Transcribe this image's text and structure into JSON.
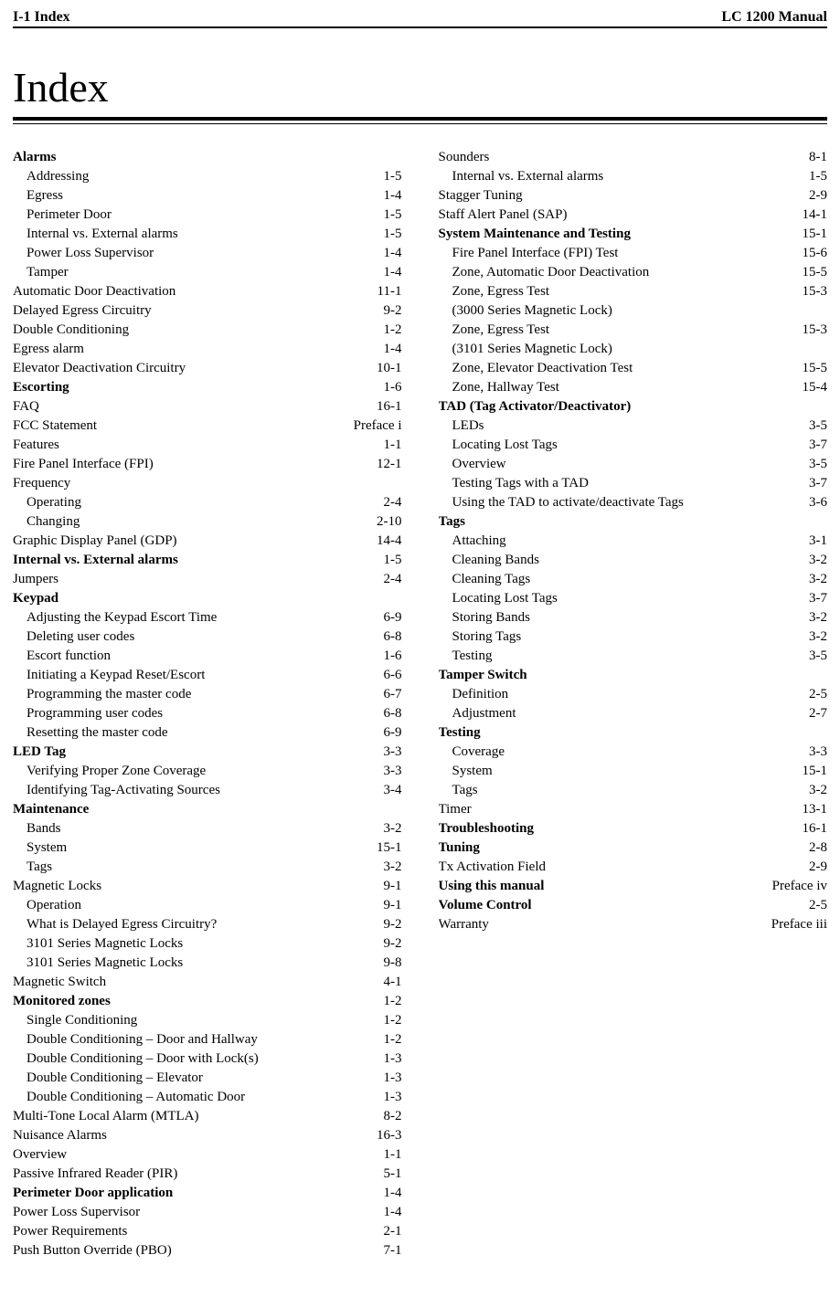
{
  "header": {
    "left": "I-1 Index",
    "right": "LC 1200 Manual"
  },
  "title": "Index",
  "left_col": [
    {
      "label": "Alarms",
      "page": "",
      "bold": true,
      "indent": 0
    },
    {
      "label": "Addressing",
      "page": "1-5",
      "indent": 1
    },
    {
      "label": "Egress",
      "page": "1-4",
      "indent": 1
    },
    {
      "label": "Perimeter Door",
      "page": "1-5",
      "indent": 1
    },
    {
      "label": "Internal vs. External alarms",
      "page": "1-5",
      "indent": 1
    },
    {
      "label": "Power Loss Supervisor",
      "page": "1-4",
      "indent": 1
    },
    {
      "label": "Tamper",
      "page": "1-4",
      "indent": 1
    },
    {
      "label": "Automatic Door Deactivation",
      "page": "11-1",
      "indent": 0
    },
    {
      "label": "Delayed Egress Circuitry",
      "page": "9-2",
      "indent": 0
    },
    {
      "label": "Double Conditioning",
      "page": "1-2",
      "indent": 0
    },
    {
      "label": "Egress alarm",
      "page": "1-4",
      "indent": 0
    },
    {
      "label": "Elevator Deactivation Circuitry",
      "page": "10-1",
      "indent": 0
    },
    {
      "label": "Escorting",
      "page": "1-6",
      "bold": true,
      "indent": 0
    },
    {
      "label": "FAQ",
      "page": "16-1",
      "indent": 0
    },
    {
      "label": "FCC Statement",
      "page": "Preface i",
      "indent": 0
    },
    {
      "label": "Features",
      "page": "1-1",
      "indent": 0
    },
    {
      "label": "Fire Panel Interface (FPI)",
      "page": "12-1",
      "indent": 0
    },
    {
      "label": "Frequency",
      "page": "",
      "indent": 0
    },
    {
      "label": "Operating",
      "page": "2-4",
      "indent": 1
    },
    {
      "label": "Changing",
      "page": "2-10",
      "indent": 1
    },
    {
      "label": "Graphic Display Panel (GDP)",
      "page": "14-4",
      "indent": 0
    },
    {
      "label": "Internal vs. External alarms",
      "page": "1-5",
      "bold": true,
      "indent": 0
    },
    {
      "label": "Jumpers",
      "page": "2-4",
      "indent": 0
    },
    {
      "label": "Keypad",
      "page": "",
      "bold": true,
      "indent": 0
    },
    {
      "label": "Adjusting the Keypad Escort Time",
      "page": "6-9",
      "indent": 1
    },
    {
      "label": "Deleting user codes",
      "page": "6-8",
      "indent": 1
    },
    {
      "label": "Escort function",
      "page": "1-6",
      "indent": 1
    },
    {
      "label": "Initiating a Keypad Reset/Escort",
      "page": "6-6",
      "indent": 1
    },
    {
      "label": "Programming the master code",
      "page": "6-7",
      "indent": 1
    },
    {
      "label": "Programming user codes",
      "page": "6-8",
      "indent": 1
    },
    {
      "label": "Resetting the master code",
      "page": "6-9",
      "indent": 1
    },
    {
      "label": "LED Tag",
      "page": "3-3",
      "bold": true,
      "indent": 0
    },
    {
      "label": "Verifying Proper Zone Coverage",
      "page": "3-3",
      "indent": 1
    },
    {
      "label": "Identifying Tag-Activating Sources",
      "page": "3-4",
      "indent": 1
    },
    {
      "label": "Maintenance",
      "page": "",
      "bold": true,
      "indent": 0
    },
    {
      "label": "Bands",
      "page": "3-2",
      "indent": 1
    },
    {
      "label": "System",
      "page": "15-1",
      "indent": 1
    },
    {
      "label": "Tags",
      "page": "3-2",
      "indent": 1
    },
    {
      "label": "Magnetic Locks",
      "page": "9-1",
      "indent": 0
    },
    {
      "label": "Operation",
      "page": "9-1",
      "indent": 1
    },
    {
      "label": "What is Delayed Egress Circuitry?",
      "page": "9-2",
      "indent": 1
    },
    {
      "label": "3101 Series Magnetic Locks",
      "page": "9-2",
      "indent": 1
    },
    {
      "label": "3101 Series Magnetic Locks",
      "page": "9-8",
      "indent": 1
    },
    {
      "label": "Magnetic Switch",
      "page": "4-1",
      "indent": 0
    },
    {
      "label": "Monitored zones",
      "page": "1-2",
      "bold": true,
      "indent": 0
    },
    {
      "label": "Single Conditioning",
      "page": "1-2",
      "indent": 1
    },
    {
      "label": "Double Conditioning – Door and Hallway",
      "page": "1-2",
      "indent": 1
    },
    {
      "label": "Double Conditioning – Door with Lock(s)",
      "page": "1-3",
      "indent": 1
    },
    {
      "label": "Double Conditioning – Elevator",
      "page": "1-3",
      "indent": 1
    },
    {
      "label": "Double Conditioning – Automatic Door",
      "page": "1-3",
      "indent": 1
    },
    {
      "label": "Multi-Tone Local Alarm (MTLA)",
      "page": "8-2",
      "indent": 0
    },
    {
      "label": "Nuisance Alarms",
      "page": "16-3",
      "indent": 0
    },
    {
      "label": "Overview",
      "page": "1-1",
      "indent": 0
    },
    {
      "label": "Passive Infrared Reader (PIR)",
      "page": "5-1",
      "indent": 0
    },
    {
      "label": "Perimeter Door application",
      "page": "1-4",
      "bold": true,
      "indent": 0
    },
    {
      "label": "Power Loss Supervisor",
      "page": "1-4",
      "indent": 0
    },
    {
      "label": "Power Requirements",
      "page": "2-1",
      "indent": 0
    },
    {
      "label": "Push Button Override (PBO)",
      "page": "7-1",
      "indent": 0
    }
  ],
  "right_col": [
    {
      "label": "Sounders",
      "page": "8-1",
      "indent": 0
    },
    {
      "label": "Internal vs. External alarms",
      "page": "1-5",
      "indent": 1
    },
    {
      "label": "Stagger Tuning",
      "page": "2-9",
      "indent": 0
    },
    {
      "label": "Staff Alert Panel (SAP)",
      "page": "14-1",
      "indent": 0
    },
    {
      "label": "System Maintenance and Testing",
      "page": "15-1",
      "bold": true,
      "indent": 0
    },
    {
      "label": "Fire Panel Interface (FPI) Test",
      "page": "15-6",
      "indent": 1
    },
    {
      "label": "Zone, Automatic Door Deactivation",
      "page": "15-5",
      "indent": 1
    },
    {
      "label": "Zone, Egress Test",
      "page": "15-3",
      "indent": 1
    },
    {
      "label": "(3000 Series Magnetic Lock)",
      "page": "",
      "indent": 1
    },
    {
      "label": "Zone, Egress Test",
      "page": "15-3",
      "indent": 1
    },
    {
      "label": "(3101 Series Magnetic Lock)",
      "page": "",
      "indent": 1
    },
    {
      "label": "Zone, Elevator Deactivation Test",
      "page": "15-5",
      "indent": 1
    },
    {
      "label": "Zone, Hallway Test",
      "page": "15-4",
      "indent": 1
    },
    {
      "label": "TAD (Tag Activator/Deactivator)",
      "page": "",
      "bold": true,
      "indent": 0
    },
    {
      "label": "LEDs",
      "page": "3-5",
      "indent": 1
    },
    {
      "label": "Locating Lost Tags",
      "page": "3-7",
      "indent": 1
    },
    {
      "label": "Overview",
      "page": "3-5",
      "indent": 1
    },
    {
      "label": "Testing Tags with a TAD",
      "page": "3-7",
      "indent": 1
    },
    {
      "label": "Using the TAD to activate/deactivate Tags",
      "page": "3-6",
      "indent": 1
    },
    {
      "label": "Tags",
      "page": "",
      "bold": true,
      "indent": 0
    },
    {
      "label": "Attaching",
      "page": "3-1",
      "indent": 1
    },
    {
      "label": "Cleaning Bands",
      "page": "3-2",
      "indent": 1
    },
    {
      "label": "Cleaning Tags",
      "page": "3-2",
      "indent": 1
    },
    {
      "label": "Locating Lost Tags",
      "page": "3-7",
      "indent": 1
    },
    {
      "label": "Storing Bands",
      "page": "3-2",
      "indent": 1
    },
    {
      "label": "Storing Tags",
      "page": "3-2",
      "indent": 1
    },
    {
      "label": "Testing",
      "page": "3-5",
      "indent": 1
    },
    {
      "label": "Tamper Switch",
      "page": "",
      "bold": true,
      "indent": 0
    },
    {
      "label": "Definition",
      "page": "2-5",
      "indent": 1
    },
    {
      "label": "Adjustment",
      "page": "2-7",
      "indent": 1
    },
    {
      "label": "Testing",
      "page": "",
      "bold": true,
      "indent": 0
    },
    {
      "label": "Coverage",
      "page": "3-3",
      "indent": 1
    },
    {
      "label": "System",
      "page": "15-1",
      "indent": 1
    },
    {
      "label": "Tags",
      "page": "3-2",
      "indent": 1
    },
    {
      "label": "Timer",
      "page": "13-1",
      "indent": 0
    },
    {
      "label": "Troubleshooting",
      "page": "16-1",
      "bold": true,
      "indent": 0
    },
    {
      "label": "Tuning",
      "page": "2-8",
      "bold": true,
      "indent": 0
    },
    {
      "label": "Tx Activation Field",
      "page": "2-9",
      "indent": 0
    },
    {
      "label": "Using this manual",
      "page": "Preface iv",
      "bold": true,
      "indent": 0
    },
    {
      "label": "Volume Control",
      "page": "2-5",
      "bold": true,
      "indent": 0
    },
    {
      "label": "Warranty",
      "page": "Preface iii",
      "indent": 0
    }
  ]
}
